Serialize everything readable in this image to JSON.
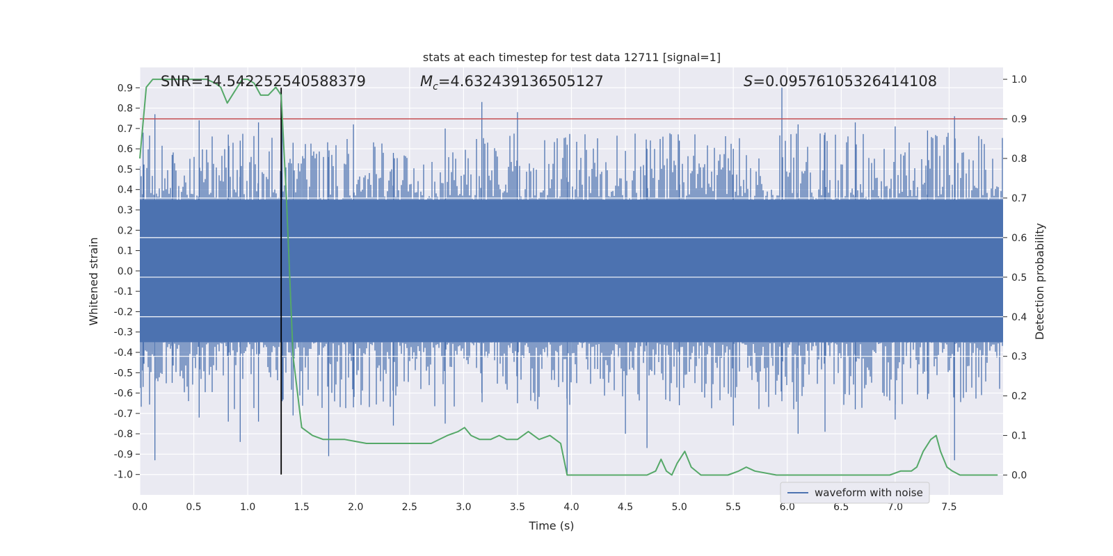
{
  "chart_data": {
    "type": "line",
    "title": "stats at each timestep for test data 12711 [signal=1]",
    "xlabel": "Time (s)",
    "ylabel": "Whitened strain",
    "y2label": "Detection probability",
    "xlim": [
      0.0,
      8.0
    ],
    "ylim": [
      -1.1,
      1.0
    ],
    "y2lim": [
      -0.05,
      1.03
    ],
    "xticks": [
      "0.0",
      "0.5",
      "1.0",
      "1.5",
      "2.0",
      "2.5",
      "3.0",
      "3.5",
      "4.0",
      "4.5",
      "5.0",
      "5.5",
      "6.0",
      "6.5",
      "7.0",
      "7.5"
    ],
    "yticks": [
      "0.9",
      "0.8",
      "0.7",
      "0.6",
      "0.5",
      "0.4",
      "0.3",
      "0.2",
      "0.1",
      "0.0",
      "-0.1",
      "-0.2",
      "-0.3",
      "-0.4",
      "-0.5",
      "-0.6",
      "-0.7",
      "-0.8",
      "-0.9",
      "-1.0"
    ],
    "y2ticks": [
      "1.0",
      "0.9",
      "0.8",
      "0.7",
      "0.6",
      "0.5",
      "0.4",
      "0.3",
      "0.2",
      "0.1",
      "0.0"
    ],
    "grid": true,
    "legend": {
      "entries": [
        "waveform with noise"
      ],
      "position": "lower-right"
    },
    "annotations": {
      "snr_label": "SNR=",
      "snr_value": "14.542252540588379",
      "mc_symbol": "M",
      "mc_subscript": "c",
      "mc_value": "=4.632439136505127",
      "s_symbol": "S",
      "s_value": "=0.09576105326414108"
    },
    "threshold": {
      "axis": "y2",
      "value": 0.9,
      "color": "#c44e52"
    },
    "merger_time": 1.31,
    "series": [
      {
        "name": "waveform with noise",
        "axis": "y",
        "color": "#4c72b0",
        "core_amplitude": 0.35,
        "peaks": [
          [
            0.03,
            0.68,
            -0.57
          ],
          [
            0.14,
            0.77,
            -0.93
          ],
          [
            0.3,
            0.57,
            -0.55
          ],
          [
            0.55,
            0.74,
            -0.72
          ],
          [
            0.82,
            0.67,
            -0.74
          ],
          [
            0.93,
            0.64,
            -0.84
          ],
          [
            1.1,
            0.73,
            -0.74
          ],
          [
            1.32,
            0.74,
            -0.64
          ],
          [
            1.42,
            0.63,
            -0.71
          ],
          [
            1.75,
            0.56,
            -0.91
          ],
          [
            1.98,
            0.72,
            -0.67
          ],
          [
            2.35,
            0.58,
            -0.76
          ],
          [
            2.83,
            0.7,
            -0.75
          ],
          [
            3.17,
            0.83,
            -0.6
          ],
          [
            3.5,
            0.78,
            -0.65
          ],
          [
            3.96,
            0.62,
            -1.0
          ],
          [
            4.5,
            0.59,
            -0.8
          ],
          [
            4.7,
            0.6,
            -0.87
          ],
          [
            5.0,
            0.64,
            -0.66
          ],
          [
            5.5,
            0.6,
            -0.76
          ],
          [
            5.95,
            0.9,
            -0.64
          ],
          [
            6.1,
            0.72,
            -0.8
          ],
          [
            6.35,
            0.68,
            -0.79
          ],
          [
            6.63,
            0.73,
            -0.68
          ],
          [
            7.0,
            0.71,
            -0.73
          ],
          [
            7.3,
            0.69,
            -0.63
          ],
          [
            7.55,
            0.76,
            -0.93
          ],
          [
            7.8,
            0.63,
            -0.61
          ]
        ]
      },
      {
        "name": "detection probability",
        "axis": "y2",
        "color": "#55a868",
        "x": [
          0.0,
          0.06,
          0.12,
          0.2,
          0.3,
          0.5,
          0.62,
          0.7,
          0.75,
          0.81,
          0.88,
          0.95,
          1.0,
          1.06,
          1.12,
          1.19,
          1.26,
          1.31,
          1.36,
          1.42,
          1.5,
          1.6,
          1.7,
          1.9,
          2.1,
          2.5,
          2.7,
          2.85,
          2.95,
          3.01,
          3.07,
          3.15,
          3.25,
          3.33,
          3.4,
          3.5,
          3.55,
          3.6,
          3.65,
          3.7,
          3.8,
          3.9,
          3.96,
          4.1,
          4.3,
          4.5,
          4.7,
          4.78,
          4.83,
          4.88,
          4.93,
          4.98,
          5.05,
          5.11,
          5.2,
          5.3,
          5.45,
          5.55,
          5.62,
          5.7,
          5.9,
          6.1,
          6.5,
          6.8,
          6.95,
          7.05,
          7.15,
          7.2,
          7.26,
          7.33,
          7.38,
          7.42,
          7.48,
          7.53,
          7.6,
          7.7,
          7.95
        ],
        "y": [
          0.8,
          0.98,
          1.0,
          1.0,
          1.0,
          1.0,
          1.0,
          0.99,
          0.98,
          0.94,
          0.97,
          1.0,
          1.0,
          0.99,
          0.96,
          0.96,
          0.98,
          0.96,
          0.69,
          0.3,
          0.12,
          0.1,
          0.09,
          0.09,
          0.08,
          0.08,
          0.08,
          0.1,
          0.11,
          0.12,
          0.1,
          0.09,
          0.09,
          0.1,
          0.09,
          0.09,
          0.1,
          0.11,
          0.1,
          0.09,
          0.1,
          0.08,
          0.0,
          0.0,
          0.0,
          0.0,
          0.0,
          0.01,
          0.04,
          0.01,
          0.0,
          0.03,
          0.06,
          0.02,
          0.0,
          0.0,
          0.0,
          0.01,
          0.02,
          0.01,
          0.0,
          0.0,
          0.0,
          0.0,
          0.0,
          0.01,
          0.01,
          0.02,
          0.06,
          0.09,
          0.1,
          0.06,
          0.02,
          0.01,
          0.0,
          0.0,
          0.0
        ]
      }
    ]
  }
}
